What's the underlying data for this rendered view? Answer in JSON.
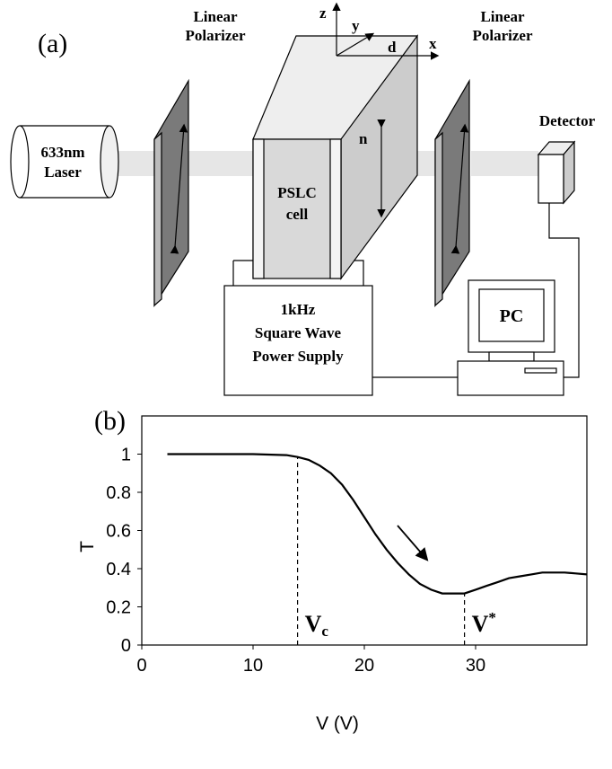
{
  "panel_a": {
    "label": "(a)",
    "polarizer_left": [
      "Linear",
      "Polarizer"
    ],
    "polarizer_right": [
      "Linear",
      "Polarizer"
    ],
    "laser": [
      "633nm",
      "Laser"
    ],
    "cell": [
      "PSLC",
      "cell"
    ],
    "director": "n",
    "axes": {
      "z": "z",
      "y": "y",
      "x": "x",
      "d": "d"
    },
    "detector": "Detector",
    "power_supply": [
      "1kHz",
      "Square Wave",
      "Power Supply"
    ],
    "computer": "PC"
  },
  "chart_data": {
    "type": "line",
    "panel_label": "(b)",
    "x_label": "V (V)",
    "y_label": "T",
    "xlim": [
      0,
      40
    ],
    "ylim": [
      0,
      1.2
    ],
    "xticks": [
      0,
      10,
      20,
      30
    ],
    "yticks": [
      0,
      0.2,
      0.4,
      0.6,
      0.8,
      1
    ],
    "series": [
      {
        "color": "#000000",
        "x": [
          2.3,
          6,
          10,
          13,
          14,
          15,
          16,
          17,
          18,
          19,
          20,
          21,
          22,
          23,
          24,
          25,
          26,
          27,
          28,
          29,
          30,
          31,
          32,
          33,
          34,
          35,
          36,
          37,
          38,
          39,
          40
        ],
        "values": [
          1,
          1,
          1,
          0.995,
          0.985,
          0.97,
          0.94,
          0.9,
          0.84,
          0.76,
          0.67,
          0.58,
          0.5,
          0.43,
          0.37,
          0.32,
          0.29,
          0.27,
          0.27,
          0.27,
          0.29,
          0.31,
          0.33,
          0.35,
          0.36,
          0.37,
          0.38,
          0.38,
          0.38,
          0.375,
          0.37
        ]
      }
    ],
    "markers": [
      {
        "x": 14,
        "y": 0.985,
        "label": "V",
        "label_sub": "c"
      },
      {
        "x": 29,
        "y": 0.27,
        "label": "V",
        "label_sup": "*"
      }
    ]
  }
}
